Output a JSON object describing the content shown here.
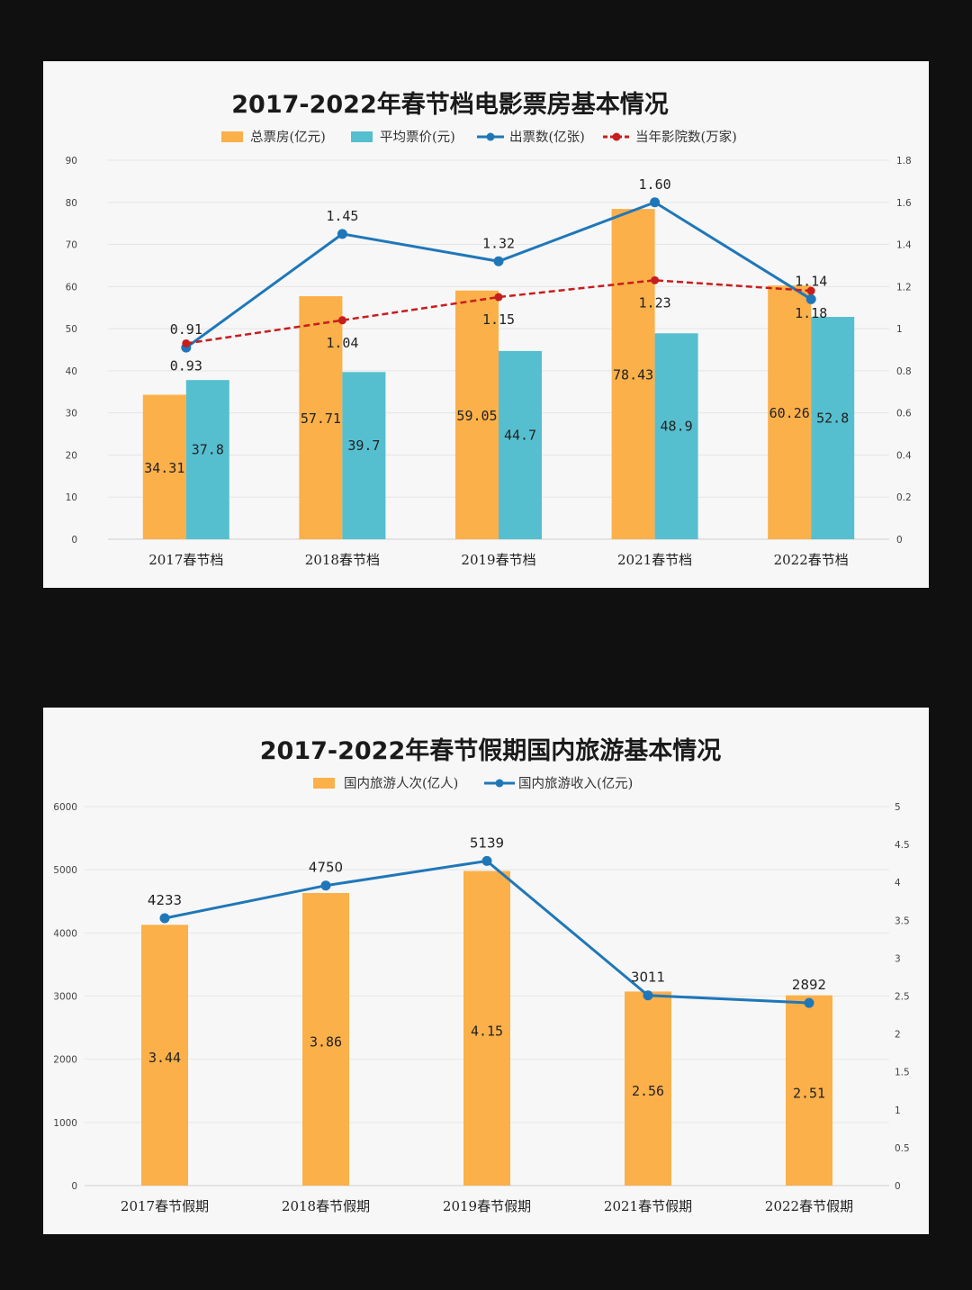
{
  "chart_data": [
    {
      "type": "bar",
      "title": "2017-2022年春节档电影票房基本情况",
      "categories": [
        "2017春节档",
        "2018春节档",
        "2019春节档",
        "2021春节档",
        "2022春节档"
      ],
      "series": [
        {
          "name": "总票房(亿元)",
          "kind": "bar",
          "axis": "left",
          "color": "#fbb04a",
          "values": [
            34.31,
            57.71,
            59.05,
            78.43,
            60.26
          ],
          "labels": [
            "34.31",
            "57.71",
            "59.05",
            "78.43",
            "60.26"
          ]
        },
        {
          "name": "平均票价(元)",
          "kind": "bar",
          "axis": "left",
          "color": "#55bfcf",
          "values": [
            37.8,
            39.7,
            44.7,
            48.9,
            52.8
          ],
          "labels": [
            "37.8",
            "39.7",
            "44.7",
            "48.9",
            "52.8"
          ]
        },
        {
          "name": "出票数(亿张)",
          "kind": "line",
          "axis": "right",
          "color": "#1f77b9",
          "values": [
            0.91,
            1.45,
            1.32,
            1.6,
            1.14
          ],
          "labels": [
            "0.91",
            "1.45",
            "1.32",
            "1.60",
            "1.14"
          ]
        },
        {
          "name": "当年影院数(万家)",
          "kind": "line",
          "dashed": true,
          "axis": "right",
          "color": "#c81d1d",
          "values": [
            0.93,
            1.04,
            1.15,
            1.23,
            1.18
          ],
          "labels": [
            "0.93",
            "1.04",
            "1.15",
            "1.23",
            "1.18"
          ]
        }
      ],
      "ylim_left": [
        0,
        90
      ],
      "yticks_left": [
        "0",
        "10",
        "20",
        "30",
        "40",
        "50",
        "60",
        "70",
        "80",
        "90"
      ],
      "ylim_right": [
        0,
        1.8
      ],
      "yticks_right": [
        "0",
        "0.2",
        "0.4",
        "0.6",
        "0.8",
        "1",
        "1.2",
        "1.4",
        "1.6",
        "1.8"
      ],
      "grid": true,
      "legend": "top"
    },
    {
      "type": "bar",
      "title": "2017-2022年春节假期国内旅游基本情况",
      "categories": [
        "2017春节假期",
        "2018春节假期",
        "2019春节假期",
        "2021春节假期",
        "2022春节假期"
      ],
      "series": [
        {
          "name": "国内旅游人次(亿人)",
          "kind": "bar",
          "axis": "right",
          "color": "#fbb04a",
          "values": [
            3.44,
            3.86,
            4.15,
            2.56,
            2.51
          ],
          "labels": [
            "3.44",
            "3.86",
            "4.15",
            "2.56",
            "2.51"
          ]
        },
        {
          "name": "国内旅游收入(亿元)",
          "kind": "line",
          "axis": "left",
          "color": "#1f77b9",
          "values": [
            4233,
            4750,
            5139,
            3011,
            2892
          ],
          "labels": [
            "4233",
            "4750",
            "5139",
            "3011",
            "2892"
          ]
        }
      ],
      "ylim_left": [
        0,
        6000
      ],
      "yticks_left": [
        "0",
        "1000",
        "2000",
        "3000",
        "4000",
        "5000",
        "6000"
      ],
      "ylim_right": [
        0,
        5
      ],
      "yticks_right": [
        "0",
        "0.5",
        "1",
        "1.5",
        "2",
        "2.5",
        "3",
        "3.5",
        "4",
        "4.5",
        "5"
      ],
      "grid": true,
      "legend": "top"
    }
  ]
}
